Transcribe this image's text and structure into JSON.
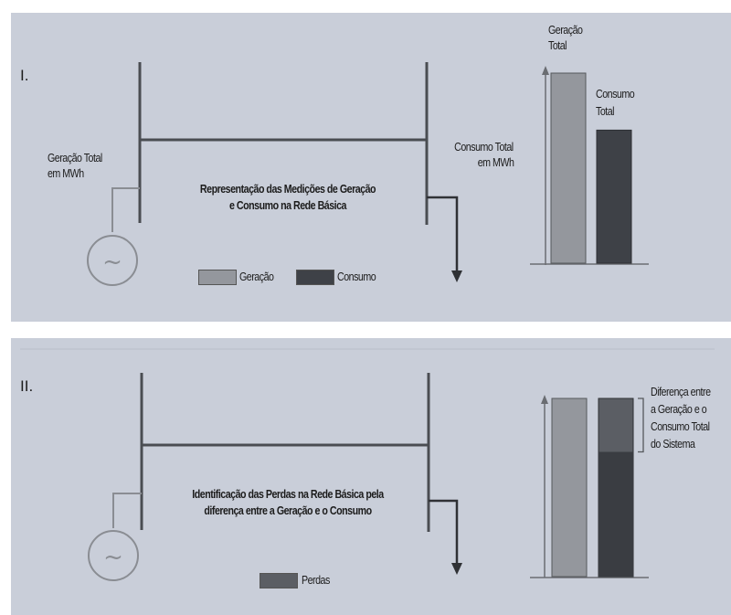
{
  "colors": {
    "background": "#c9ced9",
    "geracao": "#94979d",
    "consumo": "#3e4147",
    "perdas": "#5b5e64",
    "lines": "#4a4d52"
  },
  "panel1": {
    "roman": "I.",
    "gen_label": [
      "Geração Total",
      "em MWh"
    ],
    "cons_label": [
      "Consumo Total",
      "em MWh"
    ],
    "title": [
      "Representação das Medições de Geração",
      "e Consumo na Rede Básica"
    ],
    "generator_symbol": "~",
    "legend": [
      {
        "label": "Geração",
        "color": "#94979d"
      },
      {
        "label": "Consumo",
        "color": "#3e4147"
      }
    ],
    "bars": {
      "geracao_label": [
        "Geração",
        "Total"
      ],
      "consumo_label": [
        "Consumo",
        "Total"
      ],
      "geracao_value": 1.0,
      "consumo_value": 0.7
    }
  },
  "panel2": {
    "roman": "II.",
    "title": [
      "Identificação das Perdas na Rede Básica pela",
      "diferença entre a Geração e o Consumo"
    ],
    "generator_symbol": "~",
    "legend": [
      {
        "label": "Perdas",
        "color": "#5b5e64"
      }
    ],
    "bars": {
      "diff_label": [
        "Diferença entre",
        "a Geração e o",
        "Consumo Total",
        "do Sistema"
      ],
      "geracao_value": 1.0,
      "consumo_value": 0.7
    }
  }
}
